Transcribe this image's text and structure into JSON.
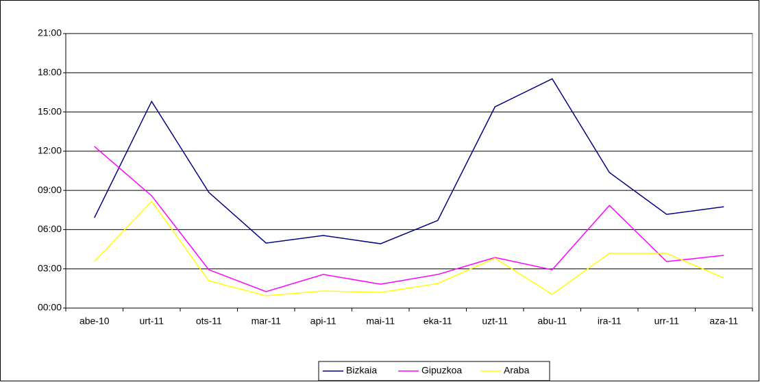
{
  "chart_data": {
    "type": "line",
    "categories": [
      "abe-10",
      "urt-11",
      "ots-11",
      "mar-11",
      "api-11",
      "mai-11",
      "eka-11",
      "uzt-11",
      "abu-11",
      "ira-11",
      "urr-11",
      "aza-11"
    ],
    "series": [
      {
        "name": "Bizkaia",
        "color": "#000080",
        "values": [
          6.91,
          15.81,
          8.85,
          4.97,
          5.55,
          4.92,
          6.7,
          15.39,
          17.54,
          10.37,
          7.17,
          7.75
        ]
      },
      {
        "name": "Gipuzkoa",
        "color": "#ff00ff",
        "values": [
          12.36,
          8.59,
          2.93,
          1.26,
          2.57,
          1.83,
          2.57,
          3.87,
          2.93,
          7.85,
          3.56,
          4.03
        ]
      },
      {
        "name": "Araba",
        "color": "#ffff00",
        "values": [
          3.56,
          8.17,
          2.09,
          0.94,
          1.31,
          1.2,
          1.88,
          3.82,
          1.05,
          4.19,
          4.19,
          2.3
        ]
      }
    ],
    "ylim": [
      0,
      21
    ],
    "yticks": [
      {
        "value": 0,
        "label": "00:00"
      },
      {
        "value": 3,
        "label": "03:00"
      },
      {
        "value": 6,
        "label": "06:00"
      },
      {
        "value": 9,
        "label": "09:00"
      },
      {
        "value": 12,
        "label": "12:00"
      },
      {
        "value": 15,
        "label": "15:00"
      },
      {
        "value": 18,
        "label": "18:00"
      },
      {
        "value": 21,
        "label": "21:00"
      }
    ],
    "grid": true,
    "legend": "bottom"
  }
}
